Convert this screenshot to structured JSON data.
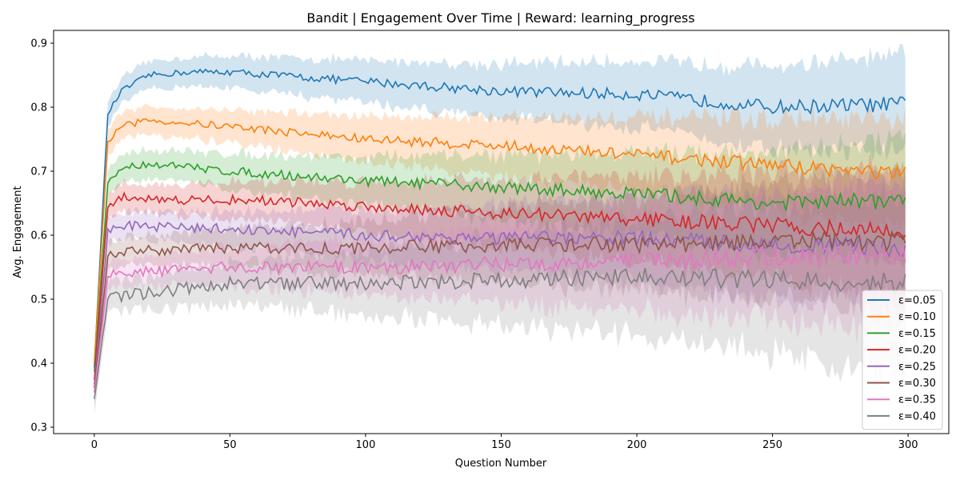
{
  "chart_data": {
    "type": "line",
    "title": "Bandit | Engagement Over Time | Reward: learning_progress",
    "xlabel": "Question Number",
    "ylabel": "Avg. Engagement",
    "xlim": [
      -15,
      315
    ],
    "ylim": [
      0.29,
      0.92
    ],
    "x_ticks": [
      0,
      50,
      100,
      150,
      200,
      250,
      300
    ],
    "y_ticks": [
      0.3,
      0.4,
      0.5,
      0.6,
      0.7,
      0.8,
      0.9
    ],
    "grid": false,
    "legend_position": "lower-right",
    "n_points": 300,
    "series": [
      {
        "name": "ε=0.05",
        "color": "#1f77b4",
        "start": 0.395,
        "ramp_end": 0.79,
        "keypoints": [
          [
            5,
            0.79
          ],
          [
            10,
            0.825
          ],
          [
            20,
            0.85
          ],
          [
            35,
            0.855
          ],
          [
            50,
            0.855
          ],
          [
            100,
            0.84
          ],
          [
            150,
            0.825
          ],
          [
            200,
            0.82
          ],
          [
            250,
            0.8
          ],
          [
            299,
            0.805
          ]
        ],
        "band_halfwidth": [
          0.02,
          0.075
        ]
      },
      {
        "name": "ε=0.10",
        "color": "#ff7f0e",
        "start": 0.4,
        "ramp_end": 0.745,
        "keypoints": [
          [
            5,
            0.745
          ],
          [
            10,
            0.77
          ],
          [
            20,
            0.78
          ],
          [
            50,
            0.77
          ],
          [
            100,
            0.75
          ],
          [
            150,
            0.74
          ],
          [
            200,
            0.725
          ],
          [
            250,
            0.71
          ],
          [
            299,
            0.695
          ]
        ],
        "band_halfwidth": [
          0.02,
          0.085
        ]
      },
      {
        "name": "ε=0.15",
        "color": "#2ca02c",
        "start": 0.385,
        "ramp_end": 0.68,
        "keypoints": [
          [
            5,
            0.68
          ],
          [
            10,
            0.705
          ],
          [
            20,
            0.712
          ],
          [
            50,
            0.7
          ],
          [
            100,
            0.685
          ],
          [
            150,
            0.675
          ],
          [
            200,
            0.665
          ],
          [
            250,
            0.65
          ],
          [
            299,
            0.655
          ]
        ],
        "band_halfwidth": [
          0.02,
          0.095
        ]
      },
      {
        "name": "ε=0.20",
        "color": "#d62728",
        "start": 0.375,
        "ramp_end": 0.645,
        "keypoints": [
          [
            5,
            0.645
          ],
          [
            10,
            0.66
          ],
          [
            30,
            0.655
          ],
          [
            60,
            0.655
          ],
          [
            100,
            0.645
          ],
          [
            150,
            0.635
          ],
          [
            200,
            0.625
          ],
          [
            250,
            0.615
          ],
          [
            299,
            0.605
          ]
        ],
        "band_halfwidth": [
          0.02,
          0.1
        ]
      },
      {
        "name": "ε=0.25",
        "color": "#9467bd",
        "start": 0.365,
        "ramp_end": 0.605,
        "keypoints": [
          [
            5,
            0.605
          ],
          [
            10,
            0.615
          ],
          [
            50,
            0.61
          ],
          [
            100,
            0.6
          ],
          [
            150,
            0.595
          ],
          [
            200,
            0.595
          ],
          [
            250,
            0.585
          ],
          [
            299,
            0.58
          ]
        ],
        "band_halfwidth": [
          0.02,
          0.1
        ]
      },
      {
        "name": "ε=0.30",
        "color": "#8c564b",
        "start": 0.36,
        "ramp_end": 0.565,
        "keypoints": [
          [
            5,
            0.565
          ],
          [
            10,
            0.575
          ],
          [
            50,
            0.58
          ],
          [
            100,
            0.58
          ],
          [
            150,
            0.585
          ],
          [
            200,
            0.585
          ],
          [
            250,
            0.59
          ],
          [
            299,
            0.59
          ]
        ],
        "band_halfwidth": [
          0.02,
          0.11
        ]
      },
      {
        "name": "ε=0.35",
        "color": "#e377c2",
        "start": 0.355,
        "ramp_end": 0.535,
        "keypoints": [
          [
            5,
            0.535
          ],
          [
            10,
            0.54
          ],
          [
            50,
            0.55
          ],
          [
            100,
            0.55
          ],
          [
            150,
            0.555
          ],
          [
            200,
            0.56
          ],
          [
            250,
            0.565
          ],
          [
            299,
            0.57
          ]
        ],
        "band_halfwidth": [
          0.02,
          0.12
        ]
      },
      {
        "name": "ε=0.40",
        "color": "#7f7f7f",
        "start": 0.345,
        "ramp_end": 0.5,
        "keypoints": [
          [
            5,
            0.5
          ],
          [
            10,
            0.505
          ],
          [
            30,
            0.515
          ],
          [
            50,
            0.525
          ],
          [
            100,
            0.525
          ],
          [
            150,
            0.53
          ],
          [
            200,
            0.535
          ],
          [
            250,
            0.53
          ],
          [
            299,
            0.525
          ]
        ],
        "band_halfwidth": [
          0.022,
          0.14
        ]
      }
    ]
  }
}
